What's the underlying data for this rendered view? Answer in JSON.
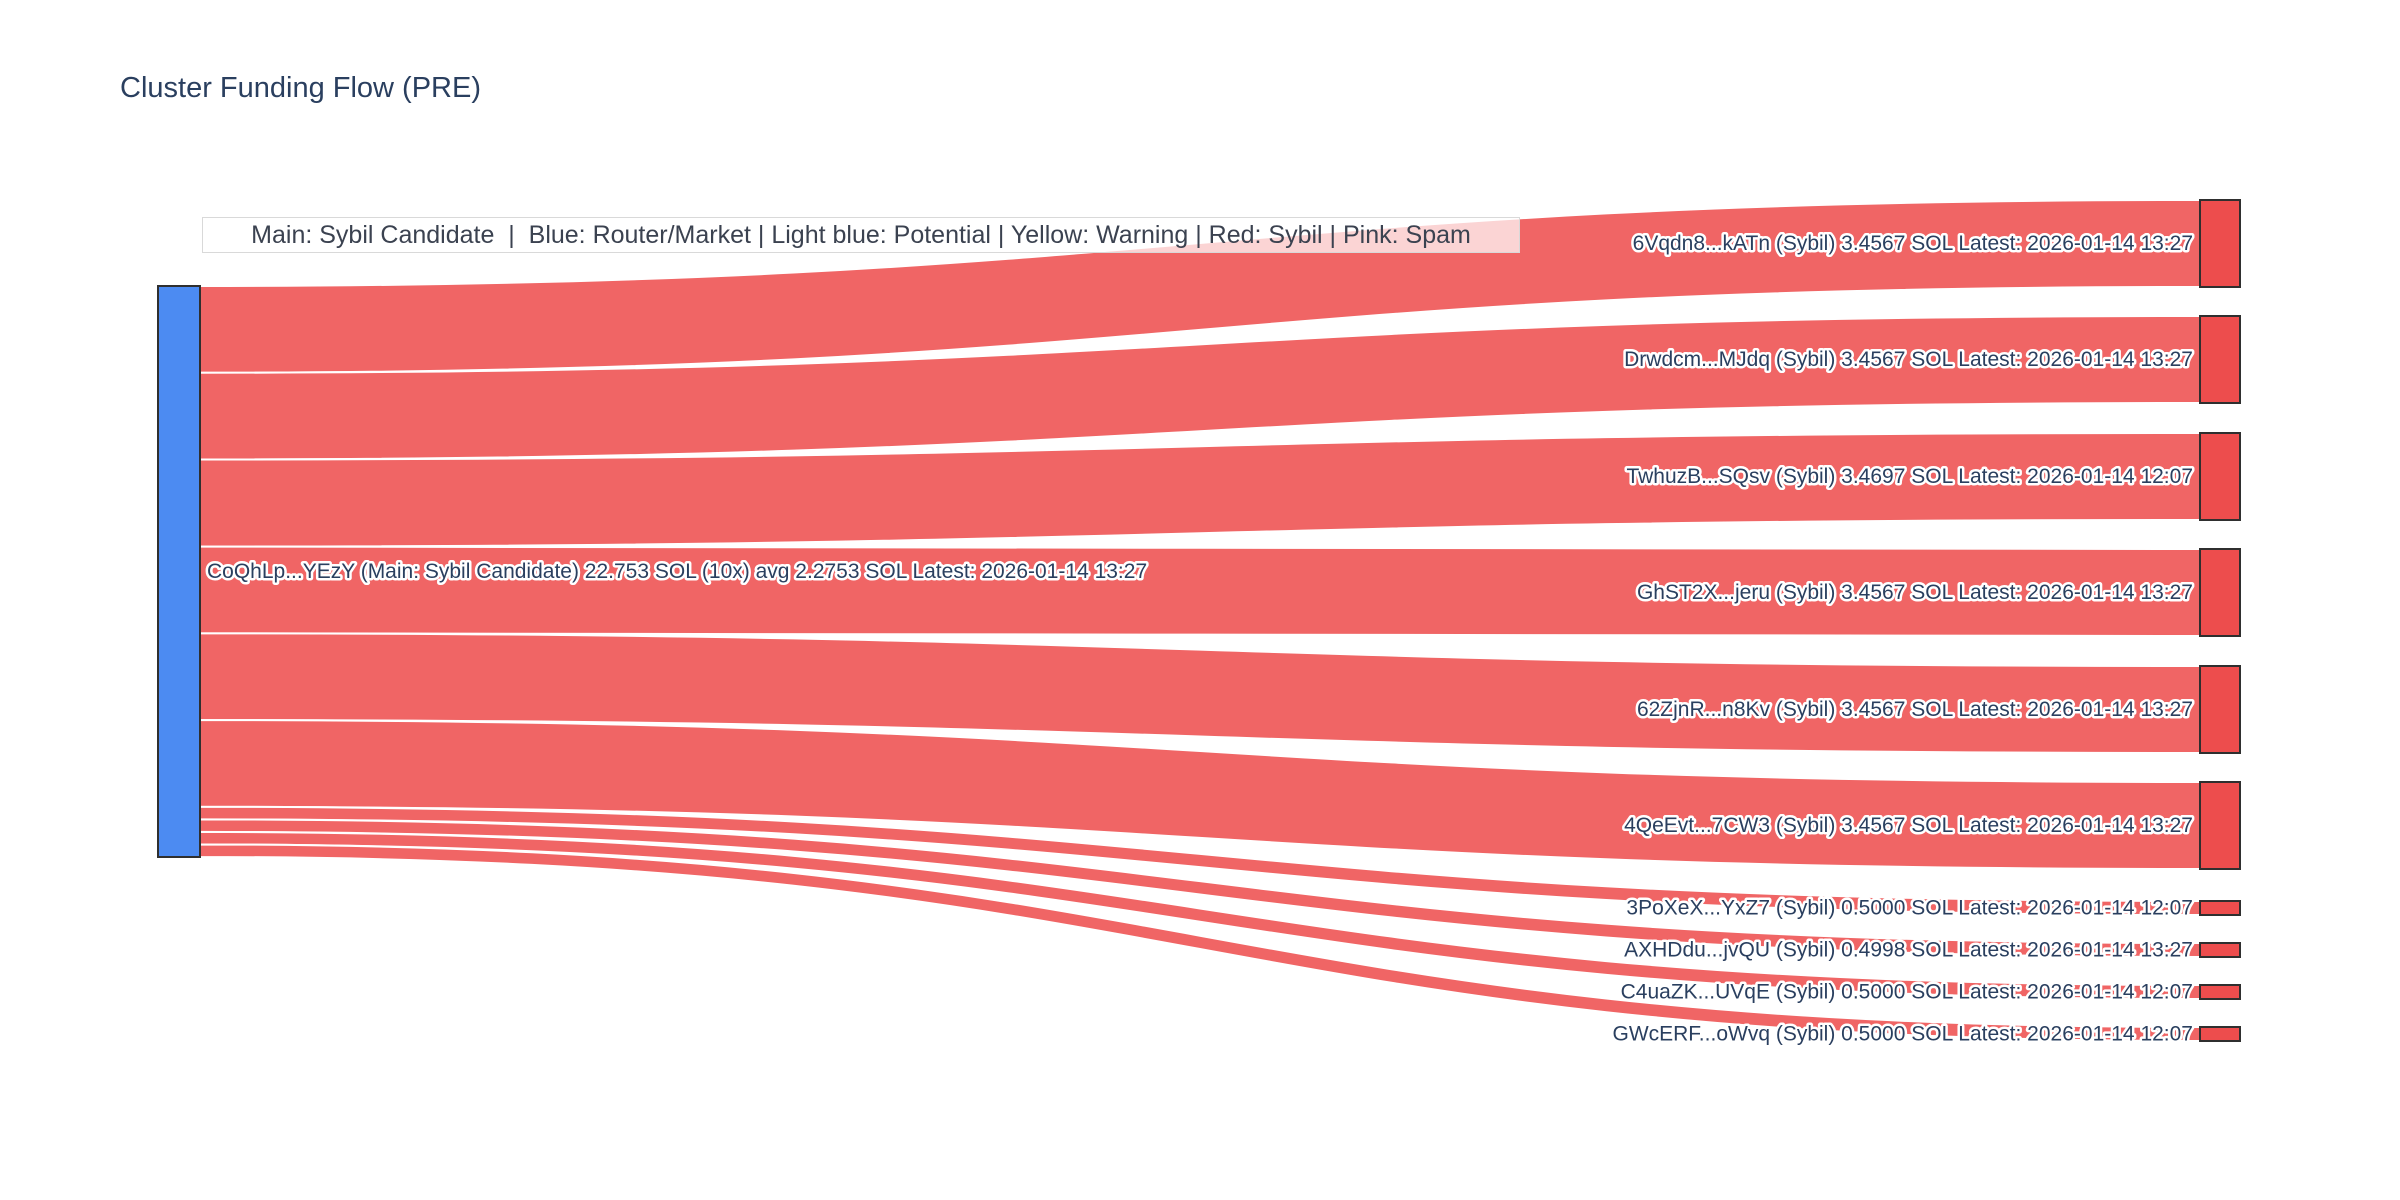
{
  "title": "Cluster Funding Flow (PRE)",
  "legend_note": "Main: Sybil Candidate  |  Blue: Router/Market | Light blue: Potential | Yellow: Warning | Red: Sybil | Pink: Spam",
  "colors": {
    "title_text": "#2a3f5f",
    "label_text": "#2a3f5f",
    "main_node": "#4c8bf2",
    "sybil_node": "#ed4d4d",
    "link": "#ef5858",
    "node_border": "#2f2f2f",
    "legend_bg": "rgba(255,255,255,0.72)",
    "legend_border": "#d9d9d9"
  },
  "chart_data": {
    "type": "sankey",
    "title": "Cluster Funding Flow (PRE)",
    "unit": "SOL",
    "legend_note": "Main: Sybil Candidate  |  Blue: Router/Market | Light blue: Potential | Yellow: Warning | Red: Sybil | Pink: Spam",
    "source": {
      "address": "CoQhLp...YEzY",
      "classification": "Main: Sybil Candidate",
      "total_sol": 22.753,
      "tx_count_label": "10x",
      "avg_sol": 2.2753,
      "latest": "2026-01-14 13:27",
      "label": "CoQhLp...YEzY (Main: Sybil Candidate) 22.753 SOL (10x) avg 2.2753 SOL Latest: 2026-01-14 13:27",
      "color": "#4c8bf2"
    },
    "targets": [
      {
        "address": "6Vqdn8...kATn",
        "classification": "Sybil",
        "value_sol": 3.4567,
        "latest": "2026-01-14 13:27",
        "label": "6Vqdn8...kATn (Sybil) 3.4567 SOL Latest: 2026-01-14 13:27"
      },
      {
        "address": "Drwdcm...MJdq",
        "classification": "Sybil",
        "value_sol": 3.4567,
        "latest": "2026-01-14 13:27",
        "label": "Drwdcm...MJdq (Sybil) 3.4567 SOL Latest: 2026-01-14 13:27"
      },
      {
        "address": "TwhuzB...SQsv",
        "classification": "Sybil",
        "value_sol": 3.4697,
        "latest": "2026-01-14 12:07",
        "label": "TwhuzB...SQsv (Sybil) 3.4697 SOL Latest: 2026-01-14 12:07"
      },
      {
        "address": "GhST2X...jeru",
        "classification": "Sybil",
        "value_sol": 3.4567,
        "latest": "2026-01-14 13:27",
        "label": "GhST2X...jeru (Sybil) 3.4567 SOL Latest: 2026-01-14 13:27"
      },
      {
        "address": "62ZjnR...n8Kv",
        "classification": "Sybil",
        "value_sol": 3.4567,
        "latest": "2026-01-14 13:27",
        "label": "62ZjnR...n8Kv (Sybil) 3.4567 SOL Latest: 2026-01-14 13:27"
      },
      {
        "address": "4QeEvt...7CW3",
        "classification": "Sybil",
        "value_sol": 3.4567,
        "latest": "2026-01-14 13:27",
        "label": "4QeEvt...7CW3 (Sybil) 3.4567 SOL Latest: 2026-01-14 13:27"
      },
      {
        "address": "3PoXeX...YxZ7",
        "classification": "Sybil",
        "value_sol": 0.5,
        "latest": "2026-01-14 12:07",
        "label": "3PoXeX...YxZ7 (Sybil) 0.5000 SOL Latest: 2026-01-14 12:07"
      },
      {
        "address": "AXHDdu...jvQU",
        "classification": "Sybil",
        "value_sol": 0.4998,
        "latest": "2026-01-14 13:27",
        "label": "AXHDdu...jvQU (Sybil) 0.4998 SOL Latest: 2026-01-14 13:27"
      },
      {
        "address": "C4uaZK...UVqE",
        "classification": "Sybil",
        "value_sol": 0.5,
        "latest": "2026-01-14 12:07",
        "label": "C4uaZK...UVqE (Sybil) 0.5000 SOL Latest: 2026-01-14 12:07"
      },
      {
        "address": "GWcERF...oWvq",
        "classification": "Sybil",
        "value_sol": 0.5,
        "latest": "2026-01-14 12:07",
        "label": "GWcERF...oWvq (Sybil) 0.5000 SOL Latest: 2026-01-14 12:07"
      }
    ]
  }
}
